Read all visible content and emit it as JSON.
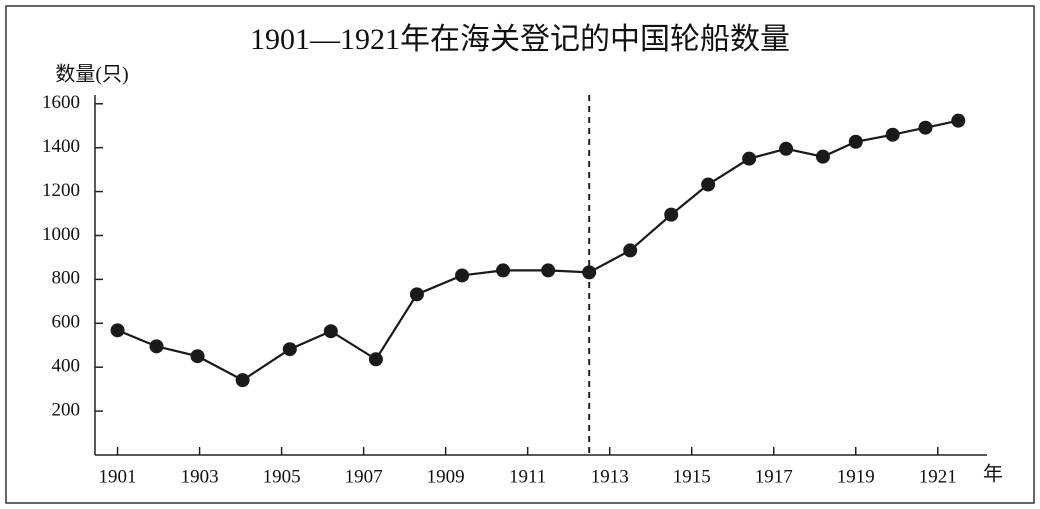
{
  "chart_data": {
    "type": "line",
    "title": "1901—1921年在海关登记的中国轮船数量",
    "y_label": "数量(只)",
    "x_label": "年",
    "x": [
      1901,
      1901.95,
      1902.95,
      1904.05,
      1905.2,
      1906.2,
      1907.3,
      1908.3,
      1909.4,
      1910.4,
      1911.5,
      1912.5,
      1913.5,
      1914.5,
      1915.4,
      1916.4,
      1917.3,
      1918.2,
      1919.0,
      1919.9,
      1920.7,
      1921.5
    ],
    "series": [
      {
        "color": "#1a1a1a",
        "values": [
          568,
          495,
          450,
          341,
          482,
          564,
          436,
          732,
          818,
          841,
          841,
          832,
          932,
          1095,
          1232,
          1350,
          1395,
          1359,
          1427,
          1459,
          1491,
          1523
        ]
      }
    ],
    "xlim": [
      1900.45,
      1922.2
    ],
    "xticks": [
      1901,
      1903,
      1905,
      1907,
      1909,
      1911,
      1913,
      1915,
      1917,
      1919,
      1921
    ],
    "ylim": [
      0,
      1640
    ],
    "yticks": [
      200,
      400,
      600,
      800,
      1000,
      1200,
      1400,
      1600
    ],
    "vline": 1912.5,
    "grid": false
  }
}
